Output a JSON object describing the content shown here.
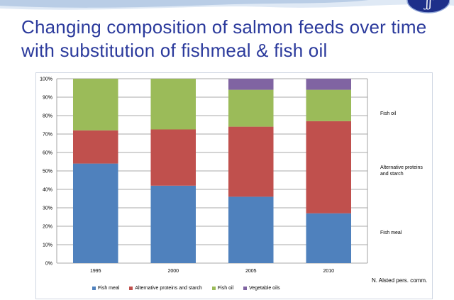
{
  "slide": {
    "title": "Changing composition of salmon feeds over time with substitution of fishmeal & fish oil",
    "credit": "N. Alsted pers. comm.",
    "logo_text": "ʃʃ"
  },
  "side_labels": {
    "fish_oil": "Fish oil",
    "alt_proteins": "Alternative proteins and starch",
    "fish_meal": "Fish meal"
  },
  "chart_data": {
    "type": "bar",
    "stacked": true,
    "categories": [
      "1995",
      "2000",
      "2005",
      "2010"
    ],
    "series": [
      {
        "name": "Fish meal",
        "color": "#4f81bd",
        "values": [
          54,
          42,
          36,
          27
        ]
      },
      {
        "name": "Alternative proteins and starch",
        "color": "#c0504d",
        "values": [
          18,
          30.5,
          38,
          50
        ]
      },
      {
        "name": "Fish oil",
        "color": "#9bbb59",
        "values": [
          28,
          27.5,
          20,
          17
        ]
      },
      {
        "name": "Vegetable oils",
        "color": "#8064a2",
        "values": [
          0,
          0,
          6,
          6
        ]
      }
    ],
    "ylim": [
      0,
      100
    ],
    "y_ticks": [
      "0%",
      "10%",
      "20%",
      "30%",
      "40%",
      "50%",
      "60%",
      "70%",
      "80%",
      "90%",
      "100%"
    ],
    "grid": true,
    "legend_position": "bottom"
  }
}
